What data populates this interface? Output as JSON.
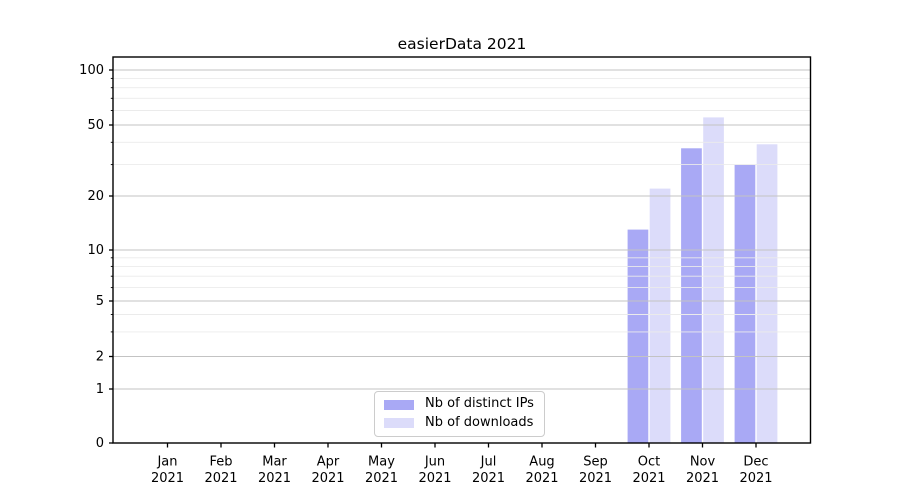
{
  "chart_data": {
    "type": "bar",
    "title": "easierData 2021",
    "x_axis": {
      "months": [
        "Jan",
        "Feb",
        "Mar",
        "Apr",
        "May",
        "Jun",
        "Jul",
        "Aug",
        "Sep",
        "Oct",
        "Nov",
        "Dec"
      ],
      "year_label": "2021"
    },
    "y_axis": {
      "scale": "symlog",
      "major_ticks": [
        0,
        1,
        2,
        5,
        10,
        20,
        50,
        100
      ],
      "minor_ticks": [
        3,
        4,
        6,
        7,
        8,
        9,
        30,
        40,
        60,
        70,
        80,
        90
      ],
      "range_top": 117
    },
    "series": [
      {
        "name": "Nb of distinct IPs",
        "color": "#a9a9f5",
        "values": [
          null,
          null,
          null,
          null,
          null,
          null,
          null,
          null,
          null,
          13,
          37,
          30
        ]
      },
      {
        "name": "Nb of downloads",
        "color": "#dcdcfa",
        "values": [
          null,
          null,
          null,
          null,
          null,
          null,
          null,
          null,
          null,
          22,
          55,
          39
        ]
      }
    ],
    "legend": {
      "position": "lower center",
      "entries": [
        "Nb of distinct IPs",
        "Nb of downloads"
      ]
    },
    "grid": {
      "grid_on": true,
      "major_color": "#c3c3c3",
      "minor_color": "#ebebeb"
    },
    "colors": {
      "spine": "#000000",
      "tick_label": "#000000",
      "background": "#ffffff"
    }
  }
}
